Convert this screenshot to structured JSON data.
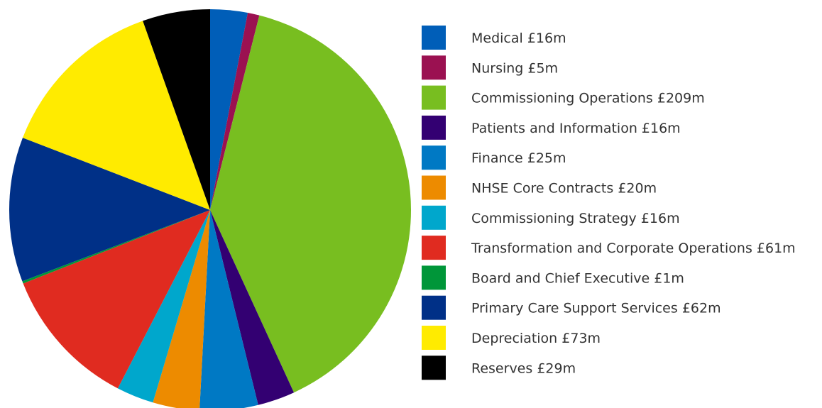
{
  "chart_data": {
    "type": "pie",
    "categories": [
      "Medical",
      "Nursing",
      "Commissioning Operations",
      "Patients and Information",
      "Finance",
      "NHSE Core Contracts",
      "Commissioning Strategy",
      "Transformation and Corporate Operations",
      "Board and Chief Executive",
      "Primary Care Support Services",
      "Depreciation",
      "Reserves"
    ],
    "values": [
      16,
      5,
      209,
      16,
      25,
      20,
      16,
      61,
      1,
      62,
      73,
      29
    ],
    "value_labels": [
      "£16m",
      "£5m",
      "£209m",
      "£16m",
      "£25m",
      "£20m",
      "£16m",
      "£61m",
      "£1m",
      "£62m",
      "£73m",
      "£29m"
    ],
    "colors": [
      "#005eb8",
      "#9b1151",
      "#78be20",
      "#330072",
      "#0079c4",
      "#ed8b00",
      "#00a7cc",
      "#e02b20",
      "#009639",
      "#003087",
      "#ffeb00",
      "#000000"
    ],
    "legend": "right"
  }
}
